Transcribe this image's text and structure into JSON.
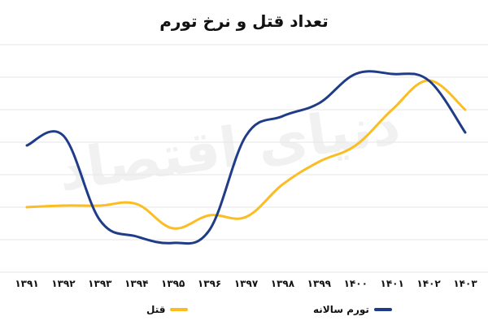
{
  "chart_data": {
    "type": "line",
    "title": "تعداد قتل و نرخ تورم",
    "xlabel": "",
    "ylabel": "",
    "categories": [
      "۱۳۹۱",
      "۱۳۹۲",
      "۱۳۹۳",
      "۱۳۹۴",
      "۱۳۹۵",
      "۱۳۹۶",
      "۱۳۹۷",
      "۱۳۹۸",
      "۱۳۹۹",
      "۱۴۰۰",
      "۱۴۰۱",
      "۱۴۰۲",
      "۱۴۰۳"
    ],
    "ylim": [
      0,
      7
    ],
    "grid": true,
    "legend_position": "bottom",
    "series": [
      {
        "name": "تورم سالانه",
        "color": "#1f3c88",
        "values": [
          3.9,
          4.2,
          1.6,
          1.1,
          0.9,
          1.3,
          4.2,
          4.8,
          5.2,
          6.1,
          6.1,
          5.9,
          4.3
        ]
      },
      {
        "name": "قتل",
        "color": "#fbbd22",
        "values": [
          2.0,
          2.05,
          2.05,
          2.1,
          1.35,
          1.75,
          1.7,
          2.7,
          3.4,
          3.9,
          5.0,
          5.9,
          5.0
        ]
      }
    ],
    "watermark": "دنیای اقتصاد"
  }
}
